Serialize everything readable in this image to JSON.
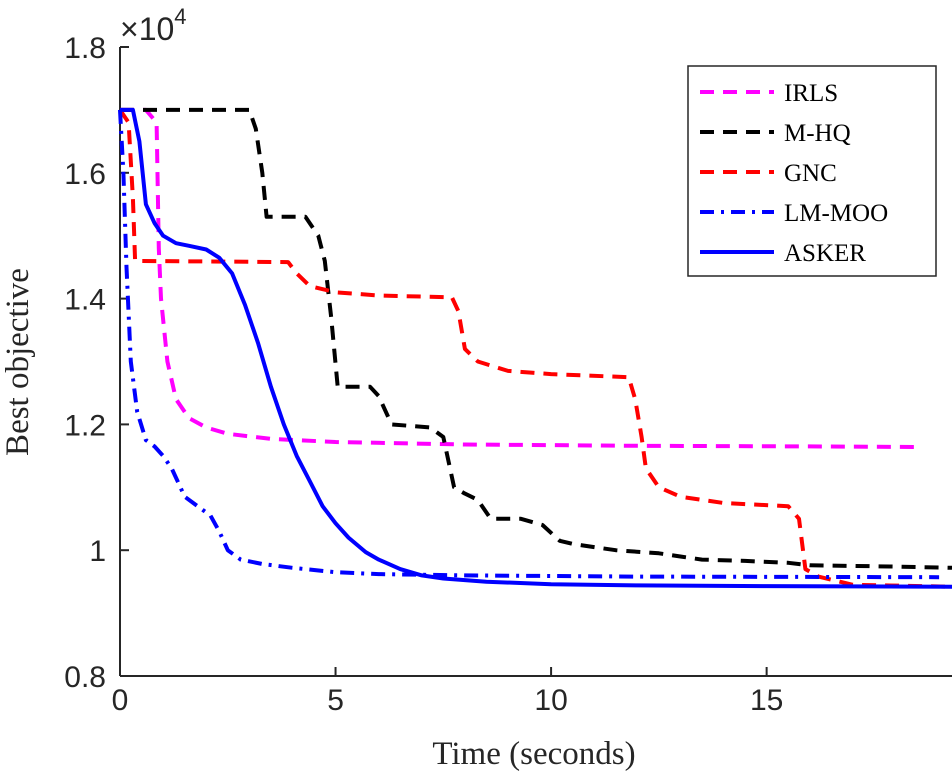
{
  "chart_data": {
    "type": "line",
    "title": "",
    "xlabel": "Time (seconds)",
    "ylabel": "Best objective",
    "xlim": [
      0,
      19.3
    ],
    "ylim": [
      0.8,
      1.8
    ],
    "xticks": [
      0,
      5,
      10,
      15
    ],
    "xtick_labels": [
      "0",
      "5",
      "10",
      "15"
    ],
    "yticks": [
      0.8,
      1.0,
      1.2,
      1.4,
      1.6,
      1.8
    ],
    "ytick_labels": [
      "0.8",
      "1",
      "1.2",
      "1.4",
      "1.6",
      "1.8"
    ],
    "y_multiplier": {
      "base": "×10",
      "exponent": "4"
    },
    "legend_position": "top-right",
    "series": [
      {
        "name": "IRLS",
        "color": "#ff00ff",
        "style": "dashed",
        "points": [
          [
            0,
            1.7
          ],
          [
            0.6,
            1.7
          ],
          [
            0.85,
            1.68
          ],
          [
            0.9,
            1.48
          ],
          [
            0.95,
            1.4
          ],
          [
            1.1,
            1.3
          ],
          [
            1.3,
            1.24
          ],
          [
            1.6,
            1.21
          ],
          [
            2.0,
            1.195
          ],
          [
            2.5,
            1.185
          ],
          [
            3.5,
            1.177
          ],
          [
            5,
            1.172
          ],
          [
            8,
            1.168
          ],
          [
            12,
            1.166
          ],
          [
            16,
            1.165
          ],
          [
            18.5,
            1.164
          ]
        ]
      },
      {
        "name": "M-HQ",
        "color": "#000000",
        "style": "dashed",
        "points": [
          [
            0,
            1.7
          ],
          [
            3.0,
            1.7
          ],
          [
            3.15,
            1.67
          ],
          [
            3.3,
            1.6
          ],
          [
            3.4,
            1.53
          ],
          [
            4.3,
            1.53
          ],
          [
            4.6,
            1.5
          ],
          [
            4.75,
            1.46
          ],
          [
            4.9,
            1.37
          ],
          [
            5.05,
            1.26
          ],
          [
            5.8,
            1.26
          ],
          [
            6.0,
            1.245
          ],
          [
            6.3,
            1.2
          ],
          [
            7.2,
            1.195
          ],
          [
            7.5,
            1.18
          ],
          [
            7.75,
            1.1
          ],
          [
            8.0,
            1.09
          ],
          [
            8.3,
            1.08
          ],
          [
            8.6,
            1.05
          ],
          [
            9.3,
            1.05
          ],
          [
            9.8,
            1.04
          ],
          [
            10.2,
            1.015
          ],
          [
            10.5,
            1.01
          ],
          [
            11.0,
            1.005
          ],
          [
            11.5,
            1.0
          ],
          [
            12.5,
            0.995
          ],
          [
            13.0,
            0.99
          ],
          [
            13.5,
            0.985
          ],
          [
            14.5,
            0.983
          ],
          [
            15.5,
            0.98
          ],
          [
            16.0,
            0.976
          ],
          [
            17.0,
            0.975
          ],
          [
            18.0,
            0.974
          ],
          [
            19.3,
            0.972
          ]
        ]
      },
      {
        "name": "GNC",
        "color": "#ff0000",
        "style": "dashed",
        "points": [
          [
            0,
            1.7
          ],
          [
            0.2,
            1.68
          ],
          [
            0.3,
            1.56
          ],
          [
            0.35,
            1.46
          ],
          [
            3.9,
            1.458
          ],
          [
            4.1,
            1.44
          ],
          [
            4.4,
            1.42
          ],
          [
            5.0,
            1.41
          ],
          [
            6.0,
            1.405
          ],
          [
            7.7,
            1.402
          ],
          [
            7.85,
            1.38
          ],
          [
            8.0,
            1.32
          ],
          [
            8.3,
            1.3
          ],
          [
            9.0,
            1.285
          ],
          [
            10.0,
            1.28
          ],
          [
            11.8,
            1.275
          ],
          [
            11.95,
            1.24
          ],
          [
            12.1,
            1.18
          ],
          [
            12.2,
            1.13
          ],
          [
            12.5,
            1.1
          ],
          [
            13.0,
            1.085
          ],
          [
            14.0,
            1.075
          ],
          [
            15.5,
            1.07
          ],
          [
            15.75,
            1.05
          ],
          [
            15.9,
            0.97
          ],
          [
            16.2,
            0.958
          ],
          [
            17.0,
            0.945
          ],
          [
            19.3,
            0.942
          ]
        ]
      },
      {
        "name": "LM-MOO",
        "color": "#0000ff",
        "style": "dashdot",
        "points": [
          [
            0,
            1.7
          ],
          [
            0.08,
            1.6
          ],
          [
            0.15,
            1.45
          ],
          [
            0.25,
            1.3
          ],
          [
            0.4,
            1.22
          ],
          [
            0.6,
            1.175
          ],
          [
            0.8,
            1.165
          ],
          [
            1.0,
            1.15
          ],
          [
            1.2,
            1.13
          ],
          [
            1.5,
            1.085
          ],
          [
            1.8,
            1.07
          ],
          [
            2.1,
            1.055
          ],
          [
            2.3,
            1.03
          ],
          [
            2.5,
            1.0
          ],
          [
            2.8,
            0.985
          ],
          [
            3.3,
            0.978
          ],
          [
            4.0,
            0.972
          ],
          [
            5.0,
            0.965
          ],
          [
            6.0,
            0.962
          ],
          [
            8.0,
            0.96
          ],
          [
            12.0,
            0.958
          ],
          [
            19.0,
            0.957
          ]
        ]
      },
      {
        "name": "ASKER",
        "color": "#0000ff",
        "style": "solid",
        "points": [
          [
            0,
            1.7
          ],
          [
            0.3,
            1.7
          ],
          [
            0.45,
            1.65
          ],
          [
            0.6,
            1.55
          ],
          [
            0.8,
            1.52
          ],
          [
            1.0,
            1.5
          ],
          [
            1.3,
            1.488
          ],
          [
            1.6,
            1.484
          ],
          [
            2.0,
            1.478
          ],
          [
            2.3,
            1.465
          ],
          [
            2.6,
            1.44
          ],
          [
            2.9,
            1.39
          ],
          [
            3.2,
            1.33
          ],
          [
            3.5,
            1.26
          ],
          [
            3.8,
            1.2
          ],
          [
            4.1,
            1.15
          ],
          [
            4.4,
            1.11
          ],
          [
            4.7,
            1.07
          ],
          [
            5.0,
            1.043
          ],
          [
            5.3,
            1.02
          ],
          [
            5.7,
            0.997
          ],
          [
            6.0,
            0.985
          ],
          [
            6.5,
            0.97
          ],
          [
            7.0,
            0.96
          ],
          [
            7.5,
            0.955
          ],
          [
            8.5,
            0.95
          ],
          [
            10.0,
            0.946
          ],
          [
            12.0,
            0.944
          ],
          [
            15.0,
            0.943
          ],
          [
            19.3,
            0.942
          ]
        ]
      }
    ]
  }
}
